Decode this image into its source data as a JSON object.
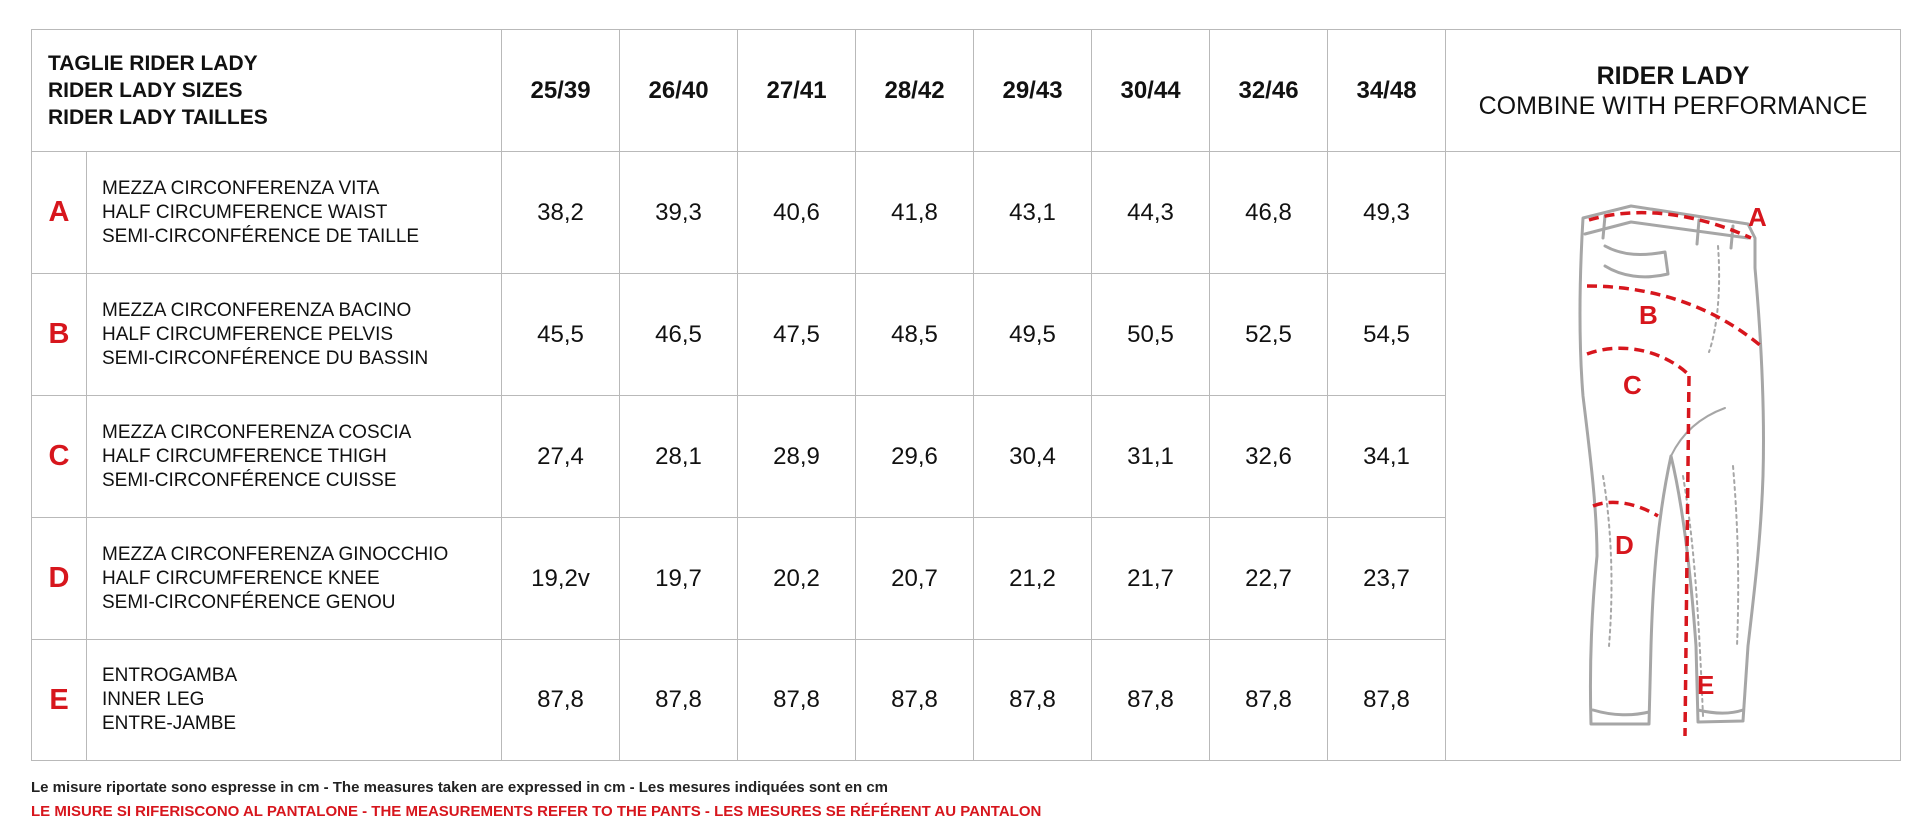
{
  "header": {
    "title_lines": [
      "TAGLIE RIDER LADY",
      "RIDER LADY SIZES",
      "RIDER LADY TAILLES"
    ],
    "sizes": [
      "25/39",
      "26/40",
      "27/41",
      "28/42",
      "29/43",
      "30/44",
      "32/46",
      "34/48"
    ],
    "product_name": "RIDER LADY",
    "product_subtitle": "COMBINE WITH PERFORMANCE"
  },
  "rows": [
    {
      "letter": "A",
      "desc": [
        "MEZZA CIRCONFERENZA VITA",
        "HALF CIRCUMFERENCE WAIST",
        "SEMI-CIRCONFÉRENCE DE TAILLE"
      ],
      "values": [
        "38,2",
        "39,3",
        "40,6",
        "41,8",
        "43,1",
        "44,3",
        "46,8",
        "49,3"
      ]
    },
    {
      "letter": "B",
      "desc": [
        "MEZZA CIRCONFERENZA BACINO",
        "HALF CIRCUMFERENCE PELVIS",
        "SEMI-CIRCONFÉRENCE DU BASSIN"
      ],
      "values": [
        "45,5",
        "46,5",
        "47,5",
        "48,5",
        "49,5",
        "50,5",
        "52,5",
        "54,5"
      ]
    },
    {
      "letter": "C",
      "desc": [
        "MEZZA CIRCONFERENZA COSCIA",
        "HALF CIRCUMFERENCE THIGH",
        "SEMI-CIRCONFÉRENCE CUISSE"
      ],
      "values": [
        "27,4",
        "28,1",
        "28,9",
        "29,6",
        "30,4",
        "31,1",
        "32,6",
        "34,1"
      ]
    },
    {
      "letter": "D",
      "desc": [
        "MEZZA CIRCONFERENZA GINOCCHIO",
        "HALF CIRCUMFERENCE KNEE",
        "SEMI-CIRCONFÉRENCE GENOU"
      ],
      "values": [
        "19,2v",
        "19,7",
        "20,2",
        "20,7",
        "21,2",
        "21,7",
        "22,7",
        "23,7"
      ]
    },
    {
      "letter": "E",
      "desc": [
        "ENTROGAMBA",
        "INNER LEG",
        "ENTRE-JAMBE"
      ],
      "values": [
        "87,8",
        "87,8",
        "87,8",
        "87,8",
        "87,8",
        "87,8",
        "87,8",
        "87,8"
      ]
    }
  ],
  "diagram": {
    "icon": "pants-measurement-icon",
    "labels": [
      "A",
      "B",
      "C",
      "D",
      "E"
    ]
  },
  "footer": {
    "note": "Le misure riportate sono espresse in cm - The measures taken are expressed in cm - Les mesures indiquées sont en cm",
    "warning": "LE MISURE SI RIFERISCONO AL PANTALONE - THE MEASUREMENTS REFER TO THE PANTS - LES MESURES SE RÉFÉRENT AU PANTALON"
  },
  "colors": {
    "accent_red": "#d7161d",
    "grid": "#b9b9b9",
    "text": "#111111",
    "outline": "#a6a6a6"
  }
}
